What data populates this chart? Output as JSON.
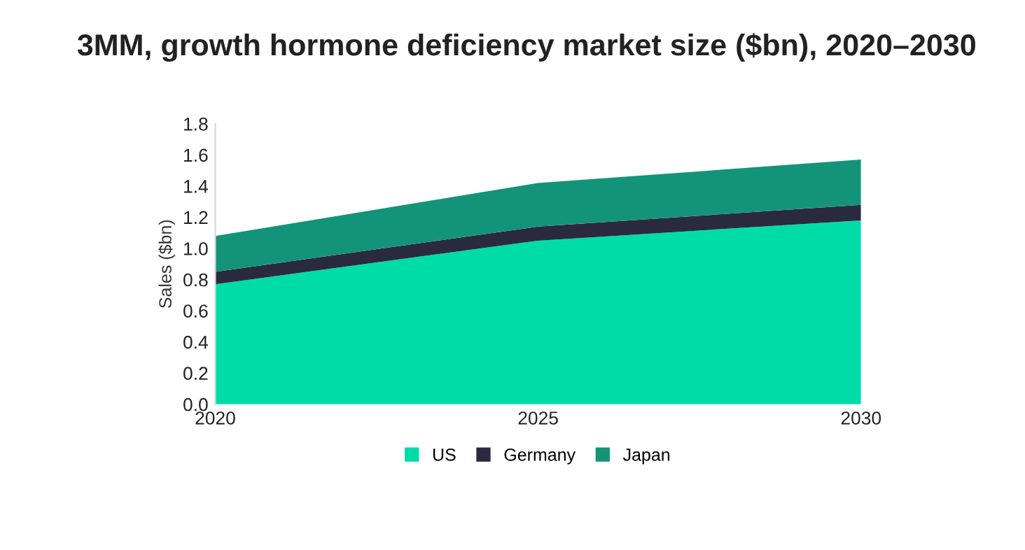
{
  "chart_data": {
    "type": "area",
    "stacked": true,
    "title": "3MM, growth hormone deficiency market size ($bn), 2020–2030",
    "ylabel": "Sales ($bn)",
    "categories": [
      "2020",
      "2025",
      "2030"
    ],
    "series": [
      {
        "name": "US",
        "color": "#00dca8",
        "values": [
          0.77,
          1.05,
          1.18
        ]
      },
      {
        "name": "Germany",
        "color": "#2a2a3e",
        "values": [
          0.08,
          0.09,
          0.1
        ]
      },
      {
        "name": "Japan",
        "color": "#139478",
        "values": [
          0.23,
          0.28,
          0.29
        ]
      }
    ],
    "ylim": [
      0,
      1.8
    ],
    "yticks": [
      {
        "value": 0,
        "label": "0.0"
      },
      0.2,
      0.4,
      0.6,
      0.8,
      {
        "value": 1,
        "label": "1.0"
      },
      1.2,
      1.4,
      1.6,
      1.8
    ],
    "grid": false,
    "legend": "bottom"
  }
}
